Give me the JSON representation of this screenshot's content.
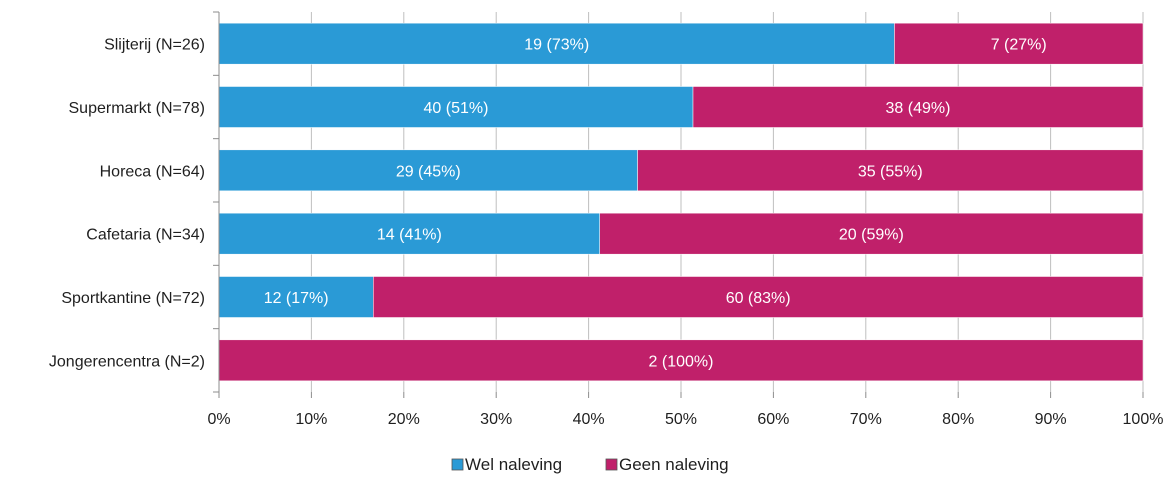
{
  "chart_data": {
    "type": "bar",
    "orientation": "horizontal",
    "stacked": true,
    "categories": [
      "Slijterij (N=26)",
      "Supermarkt (N=78)",
      "Horeca (N=64)",
      "Cafetaria (N=34)",
      "Sportkantine (N=72)",
      "Jongerencentra (N=2)"
    ],
    "series": [
      {
        "name": "Wel naleving",
        "color": "#2a9ad6",
        "values": [
          73.1,
          51.3,
          45.3,
          41.2,
          16.7,
          0
        ],
        "labels": [
          "19 (73%)",
          "40 (51%)",
          "29 (45%)",
          "14 (41%)",
          "12 (17%)",
          ""
        ]
      },
      {
        "name": "Geen naleving",
        "color": "#c0206a",
        "values": [
          26.9,
          48.7,
          54.7,
          58.8,
          83.3,
          100
        ],
        "labels": [
          "7 (27%)",
          "38 (49%)",
          "35 (55%)",
          "20 (59%)",
          "60 (83%)",
          "2 (100%)"
        ]
      }
    ],
    "xlim": [
      0,
      100
    ],
    "x_ticks": [
      "0%",
      "10%",
      "20%",
      "30%",
      "40%",
      "50%",
      "60%",
      "70%",
      "80%",
      "90%",
      "100%"
    ],
    "grid": "vertical",
    "legend_position": "bottom"
  }
}
